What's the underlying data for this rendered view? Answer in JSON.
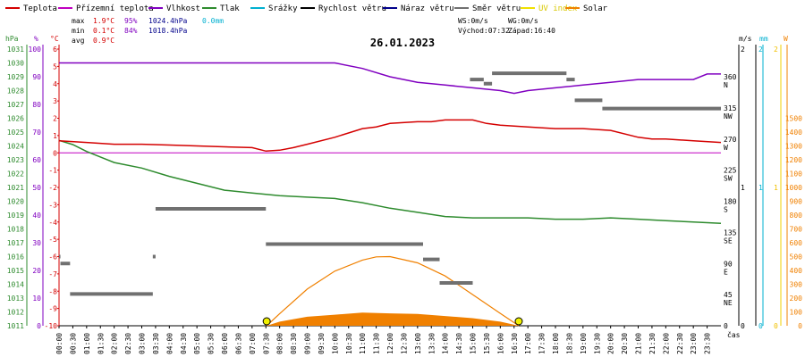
{
  "legend": [
    {
      "key": "teplota",
      "label": "Teplota",
      "color": "#d40000"
    },
    {
      "key": "prizemni",
      "label": "Přízemní teplota",
      "color": "#c000c0"
    },
    {
      "key": "vlhkost",
      "label": "Vlhkost",
      "color": "#8000c0"
    },
    {
      "key": "tlak",
      "label": "Tlak",
      "color": "#2e8b2e"
    },
    {
      "key": "srazky",
      "label": "Srážky",
      "color": "#00b0d0"
    },
    {
      "key": "rychlost",
      "label": "Rychlost větru",
      "color": "#000000"
    },
    {
      "key": "naraz",
      "label": "Náraz větru",
      "color": "#00008b"
    },
    {
      "key": "smer",
      "label": "Směr větru",
      "color": "#707070"
    },
    {
      "key": "uv",
      "label": "UV index",
      "color": "#f0e000"
    },
    {
      "key": "solar",
      "label": "Solar",
      "color": "#f08000"
    }
  ],
  "stats": {
    "max": {
      "label": "max",
      "temp": "1.9°C",
      "hum": "95%",
      "press": "1024.4hPa",
      "rain": "0.0mm"
    },
    "min": {
      "label": "min",
      "temp": "0.1°C",
      "hum": "84%",
      "press": "1018.4hPa"
    },
    "avg": {
      "label": "avg",
      "temp": "0.9°C"
    }
  },
  "wind": {
    "ws": "WS:0m/s",
    "wg": "WG:0m/s",
    "sunrise": "Východ:07:32",
    "sunset": "Západ:16:40"
  },
  "date": "26.01.2023",
  "axis_units": {
    "hpa": "hPa",
    "pct": "%",
    "degc": "°C",
    "ms": "m/s",
    "mm": "mm",
    "w": "W",
    "cas": "čas"
  },
  "chart_data": {
    "type": "line",
    "title": "26.01.2023",
    "x_ticks": [
      "00:00",
      "00:30",
      "01:00",
      "01:30",
      "02:00",
      "02:30",
      "03:00",
      "03:30",
      "04:00",
      "04:30",
      "05:00",
      "05:30",
      "06:00",
      "06:30",
      "07:00",
      "07:30",
      "08:00",
      "08:30",
      "09:00",
      "09:30",
      "10:00",
      "10:30",
      "11:00",
      "11:30",
      "12:00",
      "12:30",
      "13:00",
      "13:30",
      "14:00",
      "14:30",
      "15:00",
      "15:30",
      "16:00",
      "16:30",
      "17:00",
      "17:30",
      "18:00",
      "18:30",
      "19:00",
      "19:30",
      "20:00",
      "20:30",
      "21:00",
      "21:30",
      "22:00",
      "22:30",
      "23:00",
      "23:30"
    ],
    "axes": {
      "temperature_c": {
        "min": -10,
        "max": 6,
        "ticks": [
          6,
          5,
          4,
          3,
          2,
          1,
          0,
          -1,
          -2,
          -3,
          -4,
          -5,
          -6,
          -7,
          -8,
          -9,
          -10
        ]
      },
      "humidity_pct": {
        "min": 0,
        "max": 100,
        "ticks": [
          100,
          90,
          80,
          70,
          60,
          50,
          40,
          30,
          20,
          10,
          0
        ]
      },
      "pressure_hpa": {
        "min": 1011,
        "max": 1031,
        "ticks": [
          1031,
          1030,
          1029,
          1028,
          1027,
          1026,
          1025,
          1024,
          1023,
          1022,
          1021,
          1020,
          1019,
          1018,
          1017,
          1016,
          1015,
          1014,
          1013,
          1012,
          1011
        ]
      },
      "wind_dir_deg": {
        "ticks": [
          {
            "v": 360,
            "l": "360",
            "c": "N"
          },
          {
            "v": 315,
            "l": "315",
            "c": "NW"
          },
          {
            "v": 270,
            "l": "270",
            "c": "W"
          },
          {
            "v": 225,
            "l": "225",
            "c": "SW"
          },
          {
            "v": 180,
            "l": "180",
            "c": "S"
          },
          {
            "v": 135,
            "l": "135",
            "c": "SE"
          },
          {
            "v": 90,
            "l": "90",
            "c": "E"
          },
          {
            "v": 45,
            "l": "45",
            "c": "NE"
          },
          {
            "v": 0,
            "l": "0",
            "c": ""
          }
        ]
      },
      "wind_ms": {
        "ticks": [
          2,
          1,
          0
        ]
      },
      "rain_mm": {
        "ticks": [
          2,
          1,
          0
        ]
      },
      "uv": {
        "ticks": [
          2,
          1,
          0
        ]
      },
      "solar_w": {
        "ticks": [
          1500,
          1400,
          1300,
          1200,
          1100,
          1000,
          900,
          800,
          700,
          600,
          500,
          400,
          300,
          200,
          100,
          0
        ]
      }
    },
    "series": [
      {
        "name": "Teplota",
        "unit": "°C",
        "points": [
          [
            0,
            0.7
          ],
          [
            1,
            0.6
          ],
          [
            2,
            0.5
          ],
          [
            3,
            0.5
          ],
          [
            4,
            0.45
          ],
          [
            5,
            0.4
          ],
          [
            6,
            0.35
          ],
          [
            7,
            0.3
          ],
          [
            7.5,
            0.1
          ],
          [
            8,
            0.15
          ],
          [
            8.5,
            0.3
          ],
          [
            9,
            0.5
          ],
          [
            10,
            0.9
          ],
          [
            11,
            1.4
          ],
          [
            11.5,
            1.5
          ],
          [
            12,
            1.7
          ],
          [
            13,
            1.8
          ],
          [
            13.5,
            1.8
          ],
          [
            14,
            1.9
          ],
          [
            15,
            1.9
          ],
          [
            15.5,
            1.7
          ],
          [
            16,
            1.6
          ],
          [
            17,
            1.5
          ],
          [
            18,
            1.4
          ],
          [
            19,
            1.4
          ],
          [
            20,
            1.3
          ],
          [
            21,
            0.9
          ],
          [
            21.5,
            0.8
          ],
          [
            22,
            0.8
          ],
          [
            23,
            0.7
          ],
          [
            24,
            0.6
          ]
        ]
      },
      {
        "name": "Přízemní teplota",
        "unit": "°C",
        "points": [
          [
            0,
            0
          ],
          [
            24,
            0
          ]
        ]
      },
      {
        "name": "Vlhkost",
        "unit": "%",
        "points": [
          [
            0,
            95
          ],
          [
            7,
            95
          ],
          [
            10,
            95
          ],
          [
            11,
            93
          ],
          [
            12,
            90
          ],
          [
            13,
            88
          ],
          [
            14,
            87
          ],
          [
            15,
            86
          ],
          [
            16,
            85
          ],
          [
            16.5,
            84
          ],
          [
            17,
            85
          ],
          [
            18,
            86
          ],
          [
            19,
            87
          ],
          [
            20,
            88
          ],
          [
            21,
            89
          ],
          [
            22,
            89
          ],
          [
            23,
            89
          ],
          [
            23.5,
            91
          ],
          [
            24,
            91
          ]
        ]
      },
      {
        "name": "Tlak",
        "unit": "hPa",
        "points": [
          [
            0,
            1024.4
          ],
          [
            0.5,
            1024.1
          ],
          [
            1,
            1023.6
          ],
          [
            1.5,
            1023.2
          ],
          [
            2,
            1022.8
          ],
          [
            3,
            1022.4
          ],
          [
            4,
            1021.8
          ],
          [
            5,
            1021.3
          ],
          [
            6,
            1020.8
          ],
          [
            7,
            1020.6
          ],
          [
            7.5,
            1020.5
          ],
          [
            8,
            1020.4
          ],
          [
            9,
            1020.3
          ],
          [
            10,
            1020.2
          ],
          [
            11,
            1019.9
          ],
          [
            12,
            1019.5
          ],
          [
            13,
            1019.2
          ],
          [
            14,
            1018.9
          ],
          [
            15,
            1018.8
          ],
          [
            16,
            1018.8
          ],
          [
            17,
            1018.8
          ],
          [
            18,
            1018.7
          ],
          [
            19,
            1018.7
          ],
          [
            20,
            1018.8
          ],
          [
            21,
            1018.7
          ],
          [
            22,
            1018.6
          ],
          [
            23,
            1018.5
          ],
          [
            24,
            1018.4
          ]
        ]
      },
      {
        "name": "Směr větru",
        "unit": "°",
        "segments": [
          [
            0,
            0.05,
            100
          ],
          [
            0.05,
            0.4,
            90
          ],
          [
            0.4,
            3.4,
            46
          ],
          [
            3.4,
            3.5,
            100
          ],
          [
            3.5,
            7.5,
            169
          ],
          [
            7.5,
            13.2,
            118
          ],
          [
            13.2,
            13.8,
            96
          ],
          [
            13.8,
            15.0,
            62
          ],
          [
            14.9,
            15.4,
            356
          ],
          [
            15.4,
            15.7,
            350
          ],
          [
            15.7,
            18.4,
            365
          ],
          [
            18.4,
            18.7,
            356
          ],
          [
            18.7,
            19.7,
            326
          ],
          [
            19.7,
            24,
            314
          ]
        ]
      },
      {
        "name": "Solar",
        "unit": "W",
        "points": [
          [
            7.53,
            0
          ],
          [
            8,
            88
          ],
          [
            9,
            265
          ],
          [
            10,
            395
          ],
          [
            11,
            475
          ],
          [
            11.5,
            498
          ],
          [
            12,
            500
          ],
          [
            13,
            455
          ],
          [
            14,
            360
          ],
          [
            15,
            225
          ],
          [
            16,
            90
          ],
          [
            16.67,
            0
          ]
        ]
      },
      {
        "name": "Solar (fill)",
        "unit": "W",
        "points": [
          [
            7.53,
            0
          ],
          [
            8,
            30
          ],
          [
            9,
            65
          ],
          [
            10,
            80
          ],
          [
            11,
            95
          ],
          [
            12,
            90
          ],
          [
            13,
            85
          ],
          [
            14,
            70
          ],
          [
            15,
            55
          ],
          [
            16,
            30
          ],
          [
            16.67,
            0
          ]
        ]
      },
      {
        "name": "UV index",
        "unit": "",
        "points": [
          [
            7.53,
            0
          ],
          [
            16.67,
            0
          ]
        ]
      }
    ]
  }
}
